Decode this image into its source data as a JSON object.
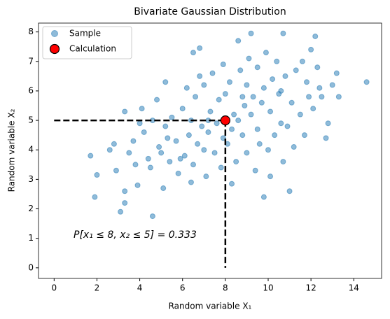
{
  "chart_data": {
    "type": "scatter",
    "title": "Bivariate Gaussian Distribution",
    "x_label": "Random variable X₁",
    "y_label": "Random variable X₂",
    "annotation": "P[x₁ ≤ 8, x₂ ≤ 5] = 0.333",
    "xlim": [
      -0.73,
      15.3
    ],
    "ylim": [
      -0.36,
      8.3
    ],
    "xticks": [
      0,
      2,
      4,
      6,
      8,
      10,
      12,
      14
    ],
    "yticks": [
      0,
      1,
      2,
      3,
      4,
      5,
      6,
      7,
      8
    ],
    "grid": false,
    "legend": "upper left",
    "series": [
      {
        "name": "Sample",
        "color": "#1f77b4",
        "alpha": 0.5,
        "x": [
          14.6,
          13.2,
          12.8,
          12.2,
          10.7,
          9.2,
          8.6,
          4.6,
          3.1,
          1.7,
          1.9,
          2.0,
          3.3,
          3.3,
          9.8,
          11.0,
          3.3,
          2.6,
          5.2,
          6.5,
          6.8,
          12.0,
          12.7,
          13.3,
          12.4,
          10.1,
          8.3,
          5.1,
          2.9,
          3.9,
          4.5,
          5.4,
          6.1,
          6.7,
          7.2,
          7.6,
          8.4,
          8.9,
          9.3,
          9.8,
          10.2,
          10.6,
          11.1,
          11.5,
          10.9,
          10.3,
          9.6,
          9.0,
          8.5,
          7.8,
          7.1,
          6.4,
          5.8,
          4.9,
          4.2,
          3.7,
          4.1,
          4.8,
          5.5,
          6.0,
          6.6,
          7.0,
          7.4,
          7.9,
          8.2,
          8.7,
          9.1,
          9.5,
          9.9,
          10.4,
          11.3,
          11.8,
          12.1,
          11.7,
          11.2,
          10.7,
          9.4,
          8.8,
          8.1,
          7.5,
          6.9,
          6.3,
          5.7,
          5.2,
          5.0,
          4.4,
          3.8,
          6.2,
          6.8,
          7.3,
          7.7,
          8.0,
          8.6,
          9.2,
          9.7,
          10.1,
          10.5,
          10.8,
          11.6,
          12.3,
          12.5,
          13.0,
          11.9,
          9.0,
          8.3,
          7.9,
          7.0,
          6.5,
          5.9,
          5.3,
          4.6,
          4.0,
          3.5,
          2.8,
          6.4,
          7.2,
          8.8,
          9.5,
          10.0,
          10.6
        ],
        "y": [
          6.3,
          6.6,
          4.9,
          7.85,
          7.95,
          7.95,
          7.7,
          1.75,
          1.9,
          3.8,
          2.4,
          3.15,
          2.2,
          2.6,
          2.4,
          2.6,
          5.3,
          4.0,
          6.3,
          7.3,
          7.45,
          7.4,
          4.4,
          5.8,
          6.1,
          3.1,
          2.85,
          2.7,
          3.3,
          2.8,
          3.4,
          3.6,
          3.8,
          4.2,
          4.6,
          4.9,
          5.2,
          5.5,
          5.8,
          6.1,
          6.4,
          6.0,
          5.6,
          5.2,
          4.8,
          4.5,
          4.2,
          3.9,
          3.6,
          3.4,
          3.1,
          2.9,
          3.2,
          4.1,
          4.6,
          4.3,
          5.4,
          5.7,
          5.1,
          5.4,
          5.8,
          6.2,
          6.6,
          6.9,
          6.3,
          6.7,
          7.1,
          6.8,
          7.3,
          7.0,
          6.7,
          6.3,
          5.4,
          4.5,
          4.1,
          3.6,
          3.3,
          4.5,
          4.2,
          3.9,
          4.8,
          4.5,
          4.3,
          4.8,
          3.9,
          3.7,
          3.5,
          6.1,
          6.5,
          5.3,
          5.7,
          5.9,
          5.0,
          5.2,
          5.6,
          5.3,
          5.9,
          6.5,
          7.0,
          6.8,
          5.8,
          6.2,
          5.8,
          6.2,
          4.7,
          4.4,
          4.0,
          3.5,
          3.7,
          4.4,
          5.0,
          4.9,
          3.9,
          4.2,
          5.0,
          5.0,
          5.8,
          4.7,
          4.0,
          4.9
        ]
      },
      {
        "name": "Calculation",
        "color": "#ff0000",
        "edgecolor": "#000000",
        "x": [
          8
        ],
        "y": [
          5
        ]
      }
    ]
  }
}
